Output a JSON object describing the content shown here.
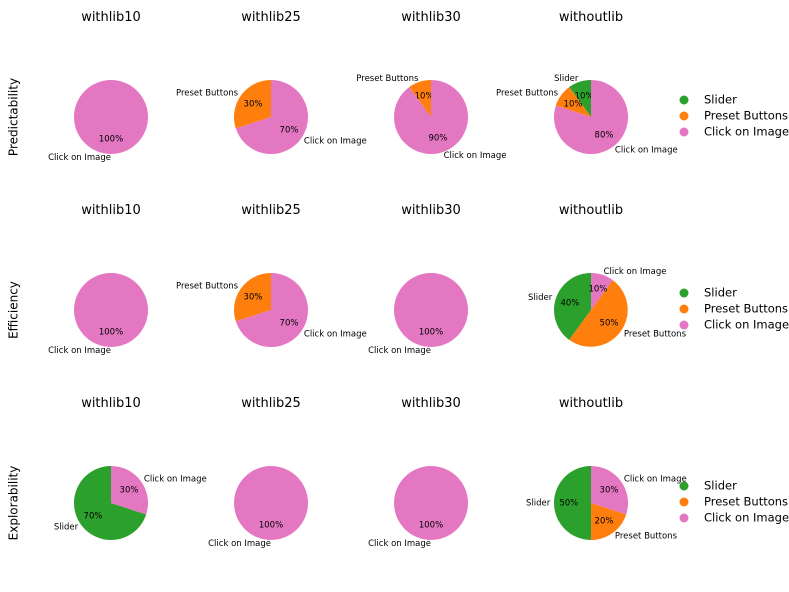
{
  "chart_data": {
    "type": "pie",
    "start": "top, counterclockwise",
    "categories": [
      "Slider",
      "Preset Buttons",
      "Click on Image"
    ],
    "colors": {
      "Slider": "#2ca02c",
      "Preset Buttons": "#ff7f0e",
      "Click on Image": "#e377c2"
    },
    "columns": [
      "withlib10",
      "withlib25",
      "withlib30",
      "withoutlib"
    ],
    "rows": [
      "Predictability",
      "Efficiency",
      "Explorability"
    ],
    "legend": {
      "entries": [
        "Slider",
        "Preset Buttons",
        "Click on Image"
      ],
      "position": "right of each row"
    },
    "pies": [
      [
        {
          "title": "withlib10",
          "slices": [
            {
              "label": "Click on Image",
              "value": 100,
              "pct": "100%"
            }
          ]
        },
        {
          "title": "withlib25",
          "slices": [
            {
              "label": "Preset Buttons",
              "value": 30,
              "pct": "30%"
            },
            {
              "label": "Click on Image",
              "value": 70,
              "pct": "70%"
            }
          ]
        },
        {
          "title": "withlib30",
          "slices": [
            {
              "label": "Preset Buttons",
              "value": 10,
              "pct": "10%"
            },
            {
              "label": "Click on Image",
              "value": 90,
              "pct": "90%"
            }
          ]
        },
        {
          "title": "withoutlib",
          "slices": [
            {
              "label": "Slider",
              "value": 10,
              "pct": "10%"
            },
            {
              "label": "Preset Buttons",
              "value": 10,
              "pct": "10%"
            },
            {
              "label": "Click on Image",
              "value": 80,
              "pct": "80%"
            }
          ]
        }
      ],
      [
        {
          "title": "withlib10",
          "slices": [
            {
              "label": "Click on Image",
              "value": 100,
              "pct": "100%"
            }
          ]
        },
        {
          "title": "withlib25",
          "slices": [
            {
              "label": "Preset Buttons",
              "value": 30,
              "pct": "30%"
            },
            {
              "label": "Click on Image",
              "value": 70,
              "pct": "70%"
            }
          ]
        },
        {
          "title": "withlib30",
          "slices": [
            {
              "label": "Click on Image",
              "value": 100,
              "pct": "100%"
            }
          ]
        },
        {
          "title": "withoutlib",
          "slices": [
            {
              "label": "Slider",
              "value": 40,
              "pct": "40%"
            },
            {
              "label": "Preset Buttons",
              "value": 50,
              "pct": "50%"
            },
            {
              "label": "Click on Image",
              "value": 10,
              "pct": "10%"
            }
          ]
        }
      ],
      [
        {
          "title": "withlib10",
          "slices": [
            {
              "label": "Slider",
              "value": 70,
              "pct": "70%"
            },
            {
              "label": "Click on Image",
              "value": 30,
              "pct": "30%"
            }
          ]
        },
        {
          "title": "withlib25",
          "slices": [
            {
              "label": "Click on Image",
              "value": 100,
              "pct": "100%"
            }
          ]
        },
        {
          "title": "withlib30",
          "slices": [
            {
              "label": "Click on Image",
              "value": 100,
              "pct": "100%"
            }
          ]
        },
        {
          "title": "withoutlib",
          "slices": [
            {
              "label": "Slider",
              "value": 50,
              "pct": "50%"
            },
            {
              "label": "Preset Buttons",
              "value": 20,
              "pct": "20%"
            },
            {
              "label": "Click on Image",
              "value": 30,
              "pct": "30%"
            }
          ]
        }
      ]
    ]
  }
}
